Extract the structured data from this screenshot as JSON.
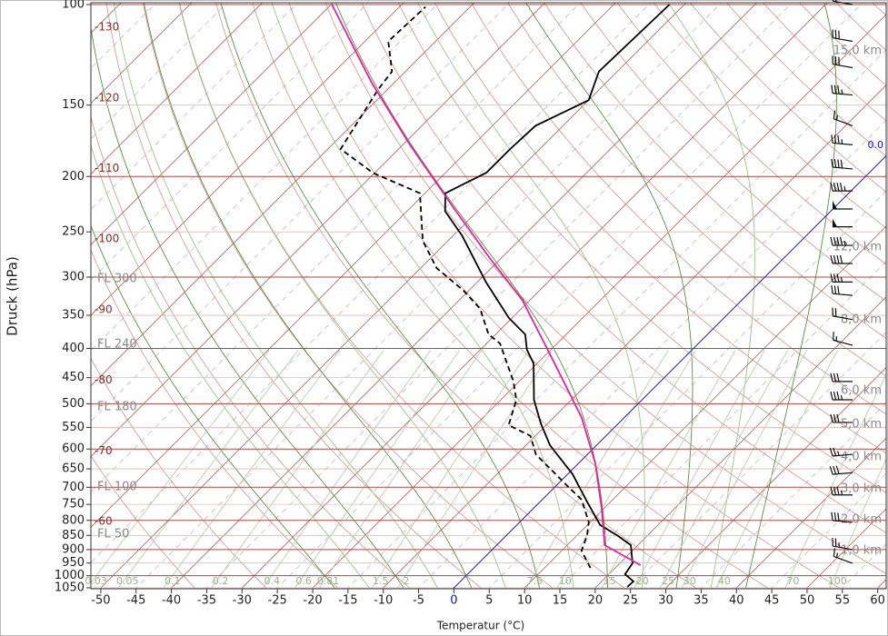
{
  "chart_data": {
    "type": "skewt",
    "x_label": "Temperatur (°C)",
    "y_label": "Druck (hPa)",
    "xlim": [
      -51.4,
      61.2
    ],
    "xticks": [
      -50,
      -45,
      -40,
      -35,
      -30,
      -25,
      -20,
      -15,
      -10,
      -5,
      0,
      5,
      10,
      15,
      20,
      25,
      30,
      35,
      40,
      45,
      50,
      55,
      60
    ],
    "ylim": [
      1050,
      100
    ],
    "log_y": true,
    "yticks": [
      100,
      150,
      200,
      250,
      300,
      350,
      400,
      450,
      500,
      550,
      600,
      650,
      700,
      750,
      800,
      850,
      900,
      950,
      1000,
      1050
    ],
    "isotherm_labels": [
      -130,
      -120,
      -110,
      -100,
      -90,
      -80,
      -70,
      -60
    ],
    "flight_levels": [
      "FL 300",
      "FL 240",
      "FL 180",
      "FL 100",
      "FL 50"
    ],
    "height_labels": [
      "15,0 km",
      "12,0 km",
      "8,0 km",
      "6,0 km",
      "5,0 km",
      "4,0 km",
      "3,0 km",
      "2,0 km",
      "1,0 km"
    ],
    "mixing_ratios": [
      0.03,
      0.05,
      0.1,
      0.2,
      0.4,
      0.6,
      0.81,
      1.5,
      2,
      7.5,
      10,
      15,
      20,
      25,
      30,
      40,
      70,
      100
    ],
    "freezing_label": "0.0",
    "series": [
      {
        "color": "#000000",
        "dash": false,
        "temperature": [
          24.4,
          24.5,
          22.3,
          21.8,
          19.0,
          15.9,
          11.8,
          6.8,
          0.7,
          -6.6,
          -11.0,
          -15.3,
          -20.5,
          -23.4,
          -25.8,
          -30.4,
          -38.8,
          -48.7,
          -54.6,
          -57.1,
          -54.2,
          -54.2,
          -53.9,
          -50,
          -52.6,
          -52.1
        ],
        "pressure": [
          1046,
          1023,
          994,
          951,
          884,
          852,
          815,
          744,
          664,
          591,
          541,
          492,
          425,
          402,
          378,
          354,
          306,
          254,
          230,
          214,
          197,
          179,
          163,
          147,
          131,
          100
        ]
      },
      {
        "color": "#000000",
        "dash": true,
        "temperature": [
          16.5,
          12.8,
          11.5,
          9.8,
          5.6,
          1.7,
          -7.3,
          -10.7,
          -15.3,
          -17.8,
          -20.8,
          -28.1,
          -31.0,
          -35.8,
          -40.7,
          -47.8,
          -53.6,
          -60.7,
          -70.3,
          -78.2,
          -81.3,
          -81.9,
          -86.7,
          -86.3
        ],
        "pressure": [
          969,
          904,
          852,
          806,
          736,
          697,
          613,
          569,
          545,
          492,
          457,
          392,
          378,
          341,
          317,
          289,
          259,
          214,
          197,
          179,
          141,
          131,
          116,
          101
        ]
      },
      {
        "color": "#e0249a",
        "dash": false,
        "temperature": [
          23.2,
          15.3,
          14.2,
          9.7,
          2.4,
          -6.0,
          -13.7,
          -21.4,
          -31.1,
          -41.4,
          -53.6,
          -69.0,
          -83.2,
          -99.9
        ],
        "pressure": [
          958,
          884,
          859,
          763,
          636,
          529,
          457,
          395,
          329,
          279,
          228,
          176,
          137,
          100
        ]
      }
    ],
    "wind": {
      "pressure": [
        100,
        116,
        129,
        144,
        163,
        176,
        194,
        212,
        228,
        245,
        264,
        284,
        306,
        323,
        356,
        395,
        457,
        492,
        539,
        613,
        660,
        722,
        806,
        900,
        951
      ],
      "speed": [
        20,
        30,
        30,
        35,
        15,
        35,
        40,
        45,
        50,
        50,
        45,
        40,
        35,
        30,
        20,
        15,
        30,
        35,
        30,
        25,
        30,
        35,
        30,
        25,
        15
      ],
      "direction": [
        280,
        280,
        280,
        275,
        290,
        275,
        275,
        270,
        270,
        270,
        270,
        270,
        270,
        275,
        280,
        285,
        270,
        270,
        270,
        265,
        265,
        270,
        275,
        280,
        290
      ]
    }
  }
}
